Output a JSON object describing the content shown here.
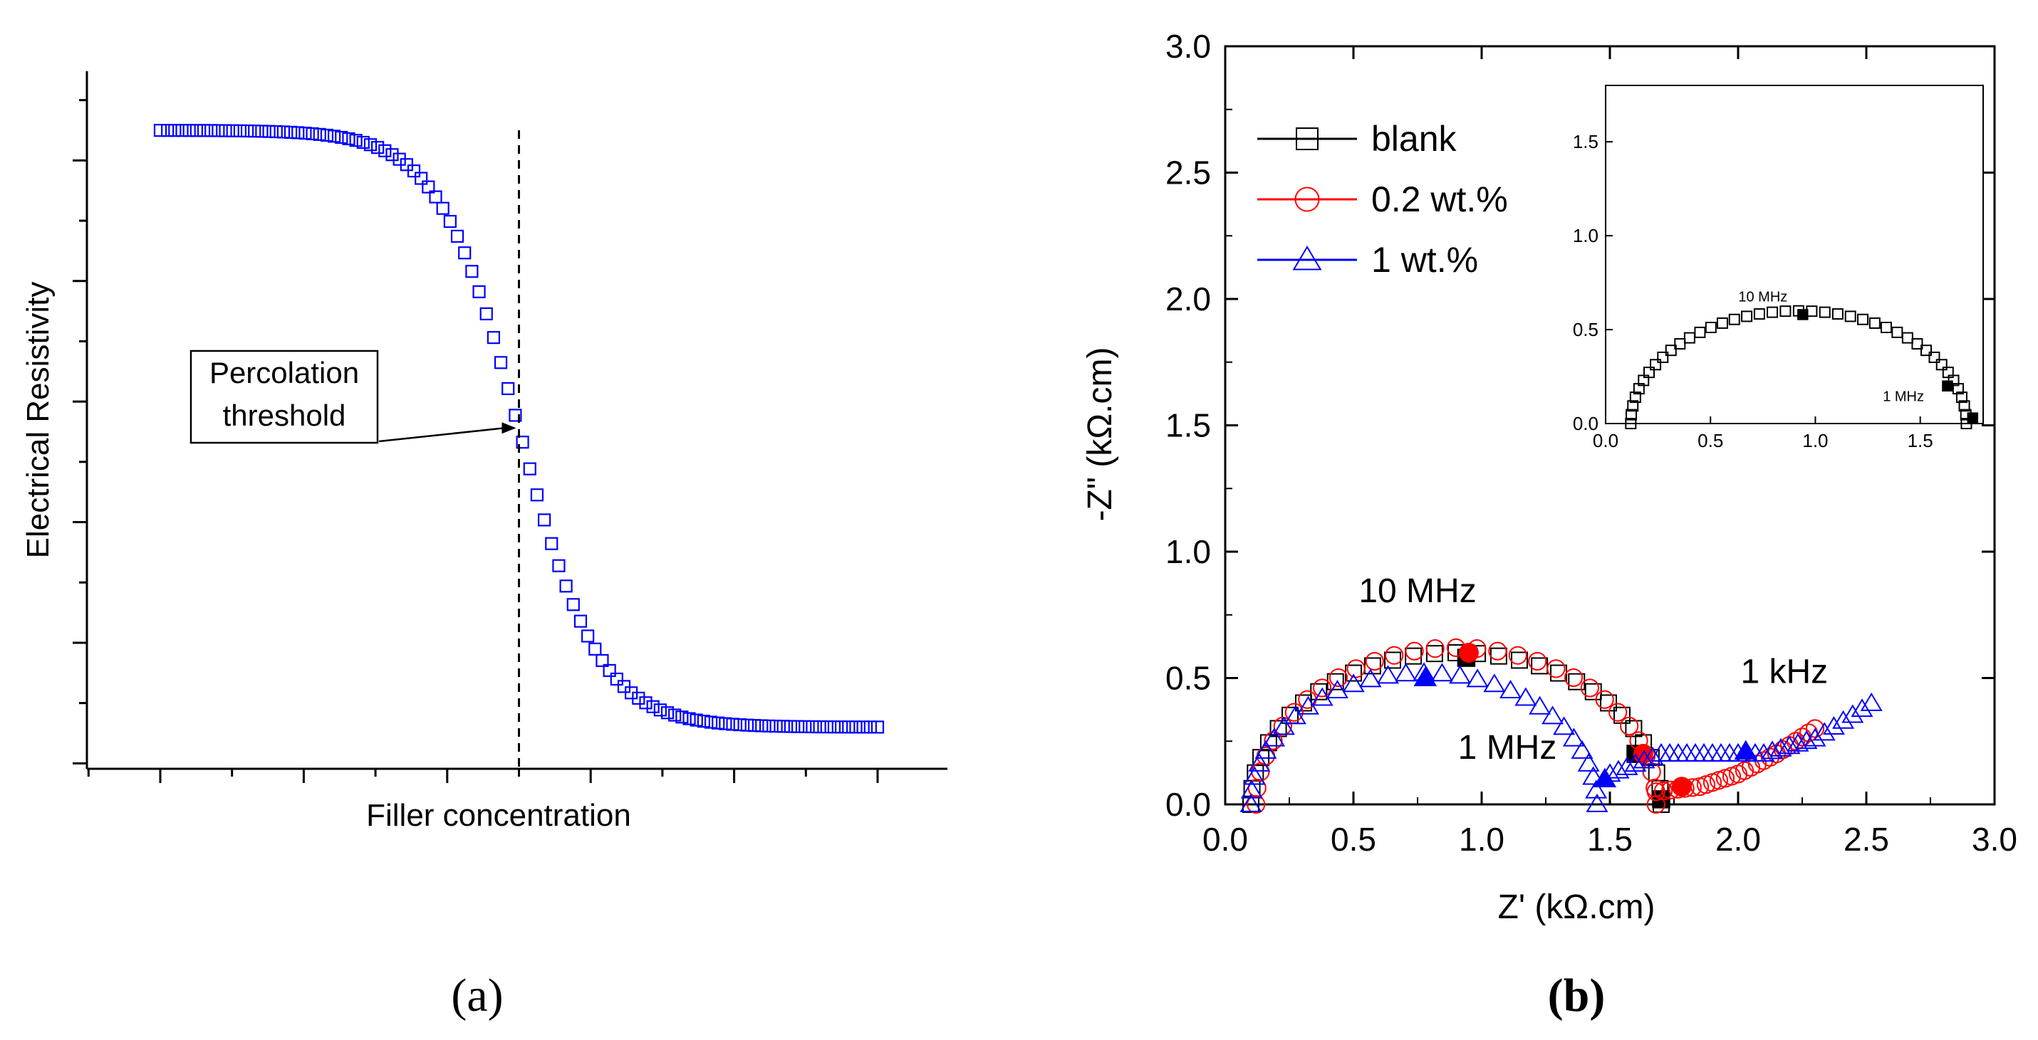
{
  "colors": {
    "blue": "#0000ff",
    "red": "#ff0000",
    "black": "#000000"
  },
  "panels": {
    "a_label": "(a)",
    "b_label": "(b)"
  },
  "chart_data": [
    {
      "panel": "a",
      "type": "scatter",
      "xlabel": "Filler concentration",
      "ylabel": "Electrical Resistivity",
      "xlim": [
        0,
        100
      ],
      "ylim": [
        0,
        100
      ],
      "tick_labels_shown": false,
      "grid": false,
      "marker": "open-square",
      "color": "#0000ff",
      "sigmoid": {
        "high": 100,
        "low": 1,
        "center": 50,
        "width": 5.6,
        "x_start": 0,
        "x_end": 100,
        "n_points": 100
      },
      "threshold": {
        "x": 50,
        "label_line1": "Percolation",
        "label_line2": "threshold"
      }
    },
    {
      "panel": "b",
      "type": "scatter",
      "xlabel": "Z' (kΩ.cm)",
      "ylabel": "-Z\" (kΩ.cm)",
      "xlim": [
        0.0,
        3.0
      ],
      "ylim": [
        0.0,
        3.0
      ],
      "xticks": [
        "0.0",
        "0.5",
        "1.0",
        "1.5",
        "2.0",
        "2.5",
        "3.0"
      ],
      "yticks": [
        "0.0",
        "0.5",
        "1.0",
        "1.5",
        "2.0",
        "2.5",
        "3.0"
      ],
      "grid": false,
      "legend_position": "top-left",
      "series": [
        {
          "name": "blank",
          "marker": "square",
          "color": "#000000",
          "arc": {
            "x_start": 0.1,
            "x_end": 1.7,
            "peak": 0.6
          },
          "filled_points": [
            [
              0.94,
              0.58
            ],
            [
              1.6,
              0.2
            ],
            [
              1.7,
              0.02
            ]
          ]
        },
        {
          "name": "0.2 wt.%",
          "marker": "circle",
          "color": "#ff0000",
          "arc": {
            "x_start": 0.12,
            "x_end": 1.68,
            "peak": 0.62
          },
          "tail": [
            [
              1.68,
              0.05
            ],
            [
              1.85,
              0.07
            ],
            [
              2.0,
              0.12
            ],
            [
              2.15,
              0.2
            ],
            [
              2.3,
              0.3
            ]
          ],
          "filled_points": [
            [
              0.95,
              0.6
            ],
            [
              1.63,
              0.2
            ],
            [
              1.78,
              0.07
            ]
          ]
        },
        {
          "name": "1 wt.%",
          "marker": "triangle",
          "color": "#0000ff",
          "arc": {
            "x_start": 0.1,
            "x_end": 1.45,
            "peak": 0.52
          },
          "tail": [
            [
              1.5,
              0.12
            ],
            [
              1.7,
              0.2
            ],
            [
              1.9,
              0.2
            ],
            [
              2.1,
              0.2
            ],
            [
              2.3,
              0.26
            ],
            [
              2.52,
              0.4
            ]
          ],
          "filled_points": [
            [
              0.78,
              0.5
            ],
            [
              1.48,
              0.1
            ],
            [
              2.03,
              0.21
            ]
          ]
        }
      ],
      "annotations": [
        {
          "text": "10 MHz",
          "x": 0.75,
          "y": 0.8
        },
        {
          "text": "1 kHz",
          "x": 2.18,
          "y": 0.48
        },
        {
          "text": "1 MHz",
          "x": 1.1,
          "y": 0.18
        }
      ]
    },
    {
      "panel": "b-inset",
      "type": "scatter",
      "xlim": [
        0.0,
        1.8
      ],
      "ylim": [
        0.0,
        1.8
      ],
      "xticks": [
        "0.0",
        "0.5",
        "1.0",
        "1.5"
      ],
      "yticks": [
        "0.0",
        "0.5",
        "1.0",
        "1.5"
      ],
      "series": [
        {
          "name": "blank",
          "marker": "square",
          "color": "#000000",
          "arc": {
            "x_start": 0.12,
            "x_end": 1.72,
            "peak": 0.6
          },
          "filled_points": [
            [
              0.94,
              0.58
            ],
            [
              1.63,
              0.2
            ],
            [
              1.75,
              0.03
            ]
          ]
        }
      ],
      "annotations": [
        {
          "text": "10 MHz",
          "x": 0.75,
          "y": 0.65
        },
        {
          "text": "1 MHz",
          "x": 1.42,
          "y": 0.12
        }
      ]
    }
  ]
}
